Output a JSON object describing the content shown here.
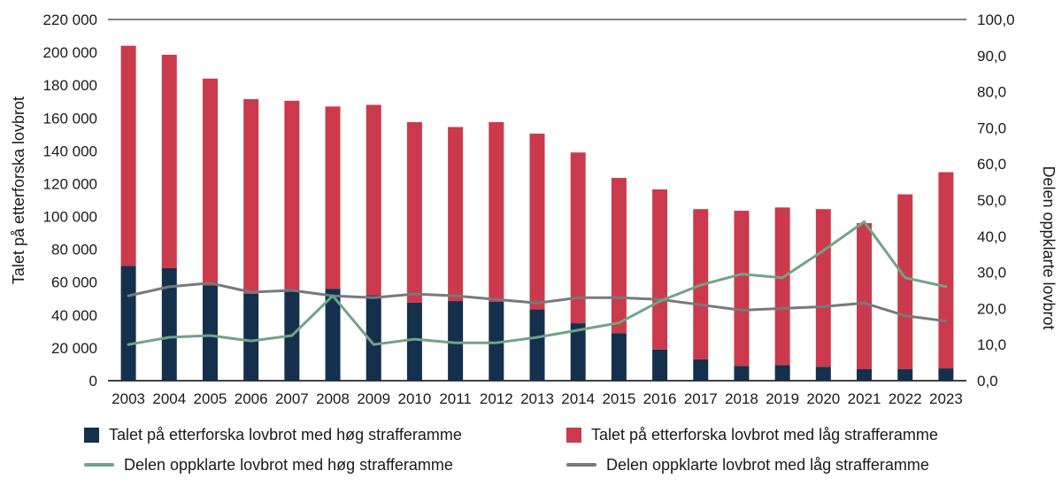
{
  "chart_data": {
    "type": "bar",
    "subtype": "stacked-bar-with-lines",
    "categories": [
      "2003",
      "2004",
      "2005",
      "2006",
      "2007",
      "2008",
      "2009",
      "2010",
      "2011",
      "2012",
      "2013",
      "2014",
      "2015",
      "2016",
      "2017",
      "2018",
      "2019",
      "2020",
      "2021",
      "2022",
      "2023"
    ],
    "series": [
      {
        "name": "Talet på etterforska lovbrot med høg strafferamme",
        "type": "bar",
        "axis": "left",
        "color": "#14304d",
        "values": [
          70000,
          68500,
          58000,
          53000,
          54500,
          56000,
          52000,
          47500,
          48500,
          48000,
          43500,
          35000,
          29000,
          19000,
          13000,
          9000,
          9500,
          8500,
          7000,
          7000,
          7500
        ]
      },
      {
        "name": "Talet på etterforska lovbrot med låg strafferamme",
        "type": "bar",
        "axis": "left",
        "color": "#cb3a4c",
        "values": [
          134000,
          130000,
          126000,
          118500,
          116000,
          111000,
          116000,
          110000,
          106000,
          109500,
          107000,
          104000,
          94500,
          97500,
          91500,
          94500,
          96000,
          96000,
          89000,
          106500,
          119500
        ]
      },
      {
        "name": "Delen oppklarte lovbrot med høg strafferamme",
        "type": "line",
        "axis": "right",
        "color": "#72a386",
        "values": [
          10.0,
          12.0,
          12.5,
          11.0,
          12.5,
          23.5,
          10.0,
          11.5,
          10.5,
          10.5,
          12.0,
          14.0,
          16.0,
          22.0,
          26.5,
          29.5,
          28.5,
          36.0,
          44.0,
          28.5,
          26.0
        ]
      },
      {
        "name": "Delen oppklarte lovbrot med låg strafferamme",
        "type": "line",
        "axis": "right",
        "color": "#77797c",
        "values": [
          23.5,
          26.0,
          27.0,
          24.5,
          25.0,
          23.5,
          23.0,
          24.0,
          23.5,
          22.5,
          21.5,
          23.0,
          23.0,
          22.5,
          21.0,
          19.5,
          20.0,
          20.5,
          21.5,
          18.0,
          16.5
        ]
      }
    ],
    "left_axis": {
      "title": "Talet på etterforska lovbrot",
      "min": 0,
      "max": 220000,
      "tick_step": 20000,
      "tick_labels": [
        "0",
        "20 000",
        "40 000",
        "60 000",
        "80 000",
        "100 000",
        "120 000",
        "140 000",
        "160 000",
        "180 000",
        "200 000",
        "220 000"
      ]
    },
    "right_axis": {
      "title": "Delen oppklarte lovbrot",
      "min": 0,
      "max": 100,
      "tick_step": 10,
      "tick_labels": [
        "0,0",
        "10,0",
        "20,0",
        "30,0",
        "40,0",
        "50,0",
        "60,0",
        "70,0",
        "80,0",
        "90,0",
        "100,0"
      ]
    },
    "grid": "top-and-bottom-lines-only",
    "legend_position": "bottom"
  }
}
